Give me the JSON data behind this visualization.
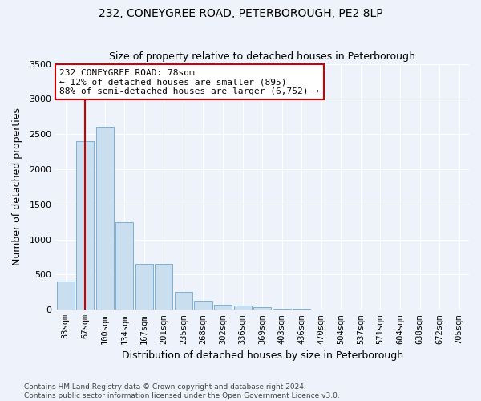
{
  "title": "232, CONEYGREE ROAD, PETERBOROUGH, PE2 8LP",
  "subtitle": "Size of property relative to detached houses in Peterborough",
  "xlabel": "Distribution of detached houses by size in Peterborough",
  "ylabel": "Number of detached properties",
  "categories": [
    "33sqm",
    "67sqm",
    "100sqm",
    "134sqm",
    "167sqm",
    "201sqm",
    "235sqm",
    "268sqm",
    "302sqm",
    "336sqm",
    "369sqm",
    "403sqm",
    "436sqm",
    "470sqm",
    "504sqm",
    "537sqm",
    "571sqm",
    "604sqm",
    "638sqm",
    "672sqm",
    "705sqm"
  ],
  "values": [
    400,
    2400,
    2600,
    1250,
    650,
    650,
    250,
    125,
    75,
    60,
    40,
    20,
    10,
    5,
    3,
    2,
    1,
    1,
    0,
    0,
    0
  ],
  "bar_color": "#c9dff0",
  "bar_edge_color": "#7ab0d8",
  "vline_x": 1.0,
  "vline_color": "#cc0000",
  "annotation_text": "232 CONEYGREE ROAD: 78sqm\n← 12% of detached houses are smaller (895)\n88% of semi-detached houses are larger (6,752) →",
  "annotation_box_facecolor": "#ffffff",
  "annotation_box_edgecolor": "#cc0000",
  "ylim": [
    0,
    3500
  ],
  "yticks": [
    0,
    500,
    1000,
    1500,
    2000,
    2500,
    3000,
    3500
  ],
  "footer": "Contains HM Land Registry data © Crown copyright and database right 2024.\nContains public sector information licensed under the Open Government Licence v3.0.",
  "background_color": "#eef2fa",
  "plot_background": "#eef2fa",
  "grid_color": "#ffffff",
  "title_fontsize": 10,
  "subtitle_fontsize": 9
}
